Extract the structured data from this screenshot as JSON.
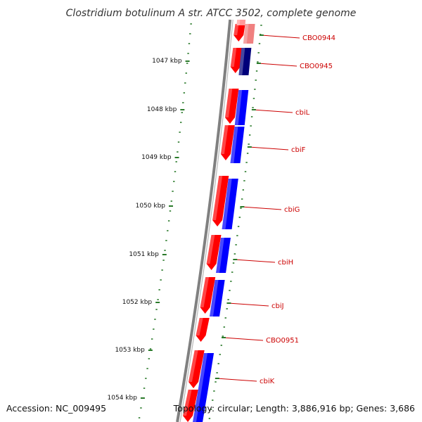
{
  "title": "Clostridium botulinum A str. ATCC 3502, complete genome",
  "colors": {
    "forward_feature": "#ff0000",
    "forward_feature_light": "#f08080",
    "reverse_feature": "#0000ff",
    "reverse_feature_dark": "#00007a",
    "backbone": "#808080",
    "ticks": "#2a7a2a",
    "gene_label": "#cc0000"
  },
  "kbp_labels": [
    "1047 kbp",
    "1048 kbp",
    "1049 kbp",
    "1050 kbp",
    "1051 kbp",
    "1052 kbp",
    "1053 kbp",
    "1054 kbp"
  ],
  "gene_labels": [
    "CBO0944",
    "CBO0945",
    "cbiL",
    "cbiF",
    "cbiG",
    "cbiH",
    "cbiJ",
    "CBO0951",
    "cbiK"
  ],
  "footer": {
    "accession": "Accession: NC_009495",
    "topology": "Topology: circular; Length: 3,886,916 bp; Genes: 3,686"
  }
}
